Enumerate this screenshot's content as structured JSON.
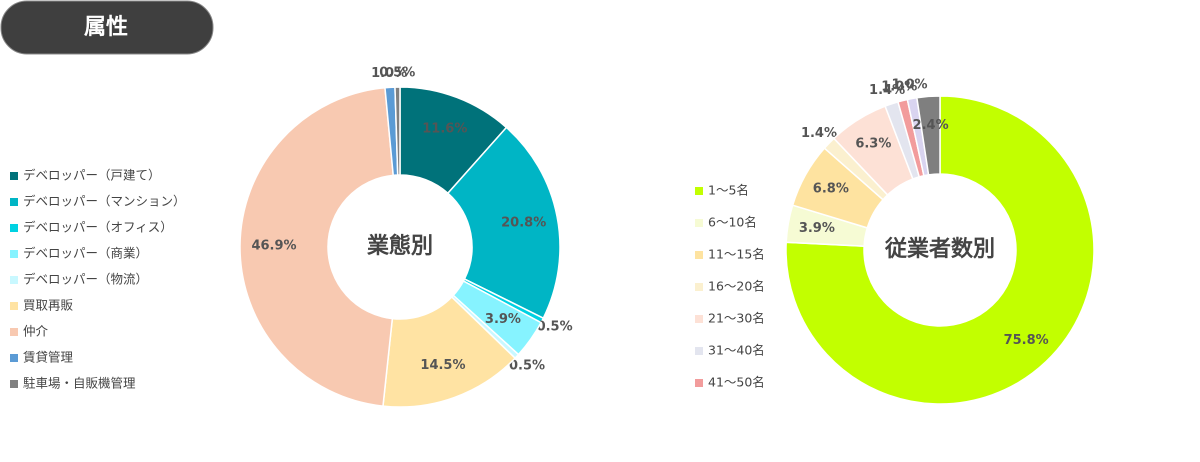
{
  "header": {
    "title": "属性"
  },
  "chart_data": [
    {
      "type": "donut",
      "center_label": "業態別",
      "categories": [
        "デベロッパー（戸建て）",
        "デベロッパー（マンション）",
        "デベロッパー（オフィス）",
        "デベロッパー（商業）",
        "デベロッパー（物流）",
        "買取再販",
        "仲介",
        "賃貸管理",
        "駐車場・自販機管理"
      ],
      "values": [
        11.6,
        20.8,
        0.5,
        3.9,
        0.5,
        14.5,
        46.9,
        1.0,
        0.5
      ],
      "value_labels": [
        "11.6%",
        "20.8%",
        "0.5%",
        "3.9%",
        "0.5%",
        "14.5%",
        "46.9%",
        "1.0%",
        "0.5%"
      ],
      "colors": [
        "#00727a",
        "#00b5c5",
        "#00d2e2",
        "#86f3ff",
        "#c9f8ff",
        "#ffe3a3",
        "#f8c9b1",
        "#5b9bd5",
        "#808080"
      ]
    },
    {
      "type": "donut",
      "center_label": "従業者数別",
      "categories": [
        "1～5名",
        "6～10名",
        "11～15名",
        "16～20名",
        "21～30名",
        "31～40名",
        "41～50名",
        null,
        null
      ],
      "values": [
        75.8,
        3.9,
        6.8,
        1.4,
        6.3,
        1.4,
        1.0,
        1.0,
        2.4
      ],
      "value_labels": [
        "75.8%",
        "3.9%",
        "6.8%",
        "1.4%",
        "6.3%",
        "1.4%",
        "1.0%",
        "1.0%",
        "2.4%"
      ],
      "colors": [
        "#c2ff00",
        "#f6fbd4",
        "#fee3a0",
        "#fbf0cf",
        "#fde1d6",
        "#e3e5ef",
        "#f29c9c",
        "#d9d4f0",
        "#7f7f7f"
      ]
    }
  ]
}
